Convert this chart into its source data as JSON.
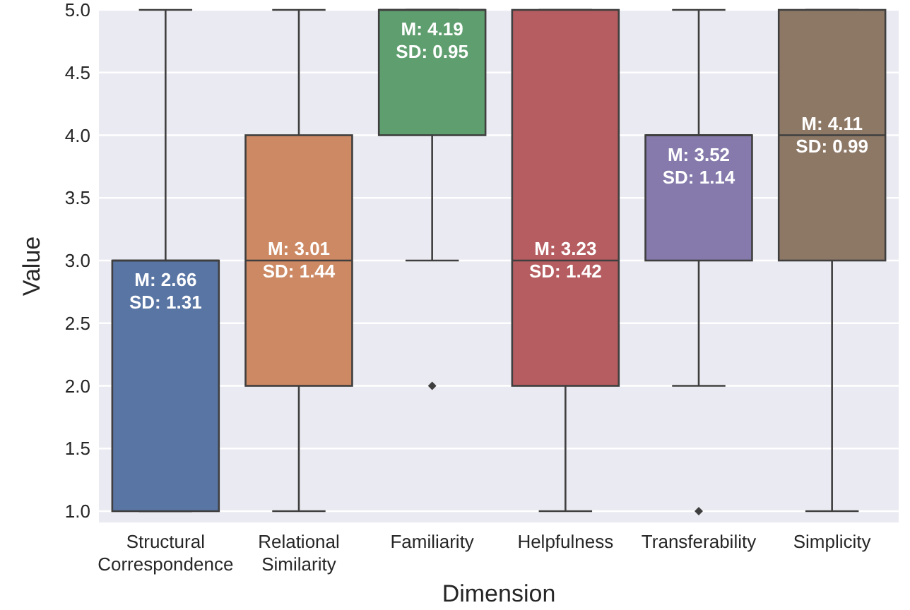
{
  "chart_data": {
    "type": "box",
    "xlabel": "Dimension",
    "ylabel": "Value",
    "categories": [
      "Structural\nCorrespondence",
      "Relational\nSimilarity",
      "Familiarity",
      "Helpfulness",
      "Transferability",
      "Simplicity"
    ],
    "colors": [
      "#5975a4",
      "#cc8963",
      "#5f9e6e",
      "#b55d60",
      "#857aab",
      "#8d7866"
    ],
    "boxes": [
      {
        "low": 1,
        "q1": 1,
        "median": 3,
        "q3": 3,
        "high": 5
      },
      {
        "low": 1,
        "q1": 2,
        "median": 3,
        "q3": 4,
        "high": 5
      },
      {
        "low": 3,
        "q1": 4,
        "median": 5,
        "q3": 5,
        "high": 5,
        "outliers": [
          2
        ]
      },
      {
        "low": 1,
        "q1": 2,
        "median": 3,
        "q3": 5,
        "high": 5
      },
      {
        "low": 2,
        "q1": 3,
        "median": 4,
        "q3": 4,
        "high": 5,
        "outliers": [
          1
        ]
      },
      {
        "low": 1,
        "q1": 3,
        "median": 4,
        "q3": 5,
        "high": 5
      }
    ],
    "annotations": [
      "M: 2.66\nSD: 1.31",
      "M: 3.01\nSD: 1.44",
      "M: 4.19\nSD: 0.95",
      "M: 3.23\nSD: 1.42",
      "M: 3.52\nSD: 1.14",
      "M: 4.11\nSD: 0.99"
    ],
    "ylim": [
      0.91,
      5.0
    ],
    "yticks": [
      {
        "value": 1,
        "label": "1.0"
      },
      {
        "value": 1.5,
        "label": "1.5"
      },
      {
        "value": 2,
        "label": "2.0"
      },
      {
        "value": 2.5,
        "label": "2.5"
      },
      {
        "value": 3,
        "label": "3.0"
      },
      {
        "value": 3.5,
        "label": "3.5"
      },
      {
        "value": 4,
        "label": "4.0"
      },
      {
        "value": 4.5,
        "label": "4.5"
      },
      {
        "value": 5,
        "label": "5.0"
      }
    ],
    "grid": "y"
  }
}
